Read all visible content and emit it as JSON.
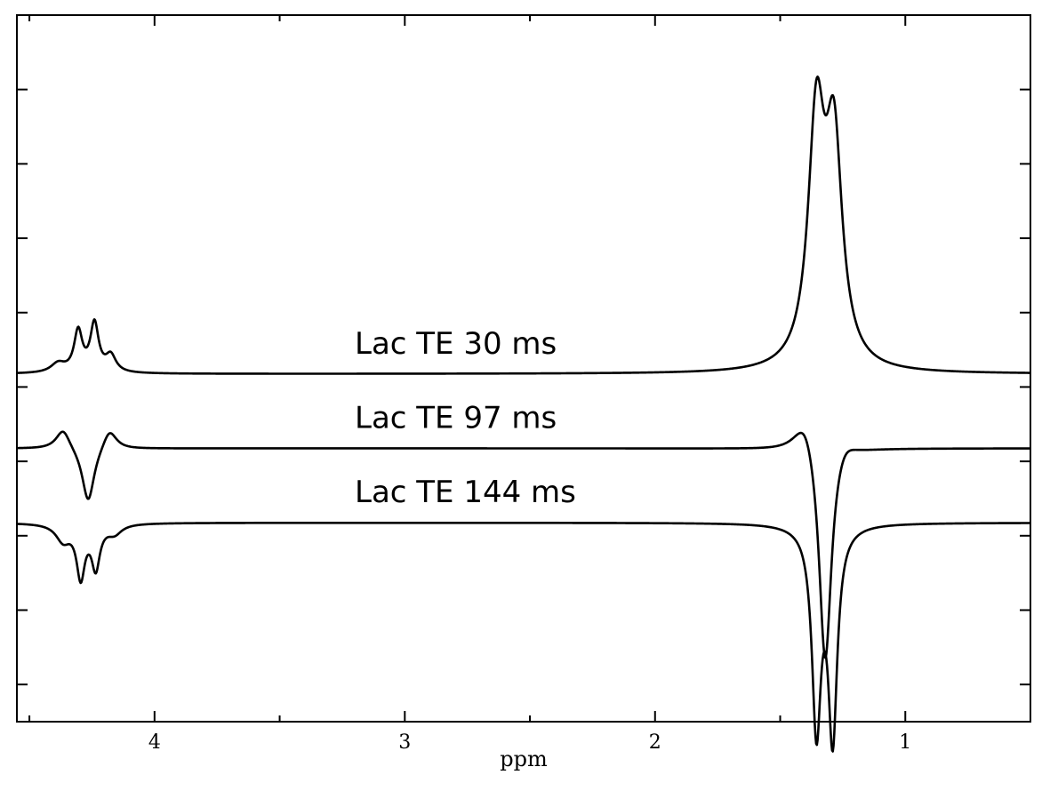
{
  "chart_data": {
    "type": "line",
    "xlabel": "ppm",
    "xlim": [
      4.55,
      0.5
    ],
    "x_reversed": true,
    "x_ticks": [
      4,
      3,
      2,
      1
    ],
    "x_tick_labels": [
      "4",
      "3",
      "2",
      "1"
    ],
    "ylim": [
      -9.0,
      10.0
    ],
    "y_ticks": [
      -8,
      -6,
      -4,
      -2,
      0,
      2,
      4,
      6,
      8
    ],
    "y_tick_labels_shown": false,
    "grid": false,
    "series": [
      {
        "name": "Lac TE 30 ms",
        "label_anchor": {
          "x": 3.2,
          "y": 0.9
        },
        "baseline": 0.35,
        "peaks": [
          {
            "center": 4.385,
            "amp": 0.25,
            "width": 0.035
          },
          {
            "center": 4.305,
            "amp": 1.1,
            "width": 0.02
          },
          {
            "center": 4.24,
            "amp": 1.3,
            "width": 0.02
          },
          {
            "center": 4.175,
            "amp": 0.45,
            "width": 0.025
          },
          {
            "center": 1.355,
            "amp": 6.5,
            "width": 0.04
          },
          {
            "center": 1.285,
            "amp": 5.8,
            "width": 0.04
          }
        ]
      },
      {
        "name": "Lac TE 97 ms",
        "label_anchor": {
          "x": 3.2,
          "y": -1.1
        },
        "baseline": -1.65,
        "peaks": [
          {
            "center": 4.365,
            "amp": 0.55,
            "width": 0.035
          },
          {
            "center": 4.265,
            "amp": -1.5,
            "width": 0.03
          },
          {
            "center": 4.18,
            "amp": 0.55,
            "width": 0.035
          },
          {
            "center": 1.4,
            "amp": 1.0,
            "width": 0.055
          },
          {
            "center": 1.32,
            "amp": -6.1,
            "width": 0.03
          },
          {
            "center": 1.245,
            "amp": 0.45,
            "width": 0.05
          }
        ]
      },
      {
        "name": "Lac TE 144 ms",
        "label_anchor": {
          "x": 3.2,
          "y": -3.1
        },
        "baseline": -3.65,
        "peaks": [
          {
            "center": 4.365,
            "amp": -0.45,
            "width": 0.035
          },
          {
            "center": 4.295,
            "amp": -1.4,
            "width": 0.02
          },
          {
            "center": 4.235,
            "amp": -1.15,
            "width": 0.02
          },
          {
            "center": 4.16,
            "amp": -0.25,
            "width": 0.035
          },
          {
            "center": 1.355,
            "amp": -5.4,
            "width": 0.022
          },
          {
            "center": 1.29,
            "amp": -5.6,
            "width": 0.022
          }
        ]
      }
    ]
  }
}
